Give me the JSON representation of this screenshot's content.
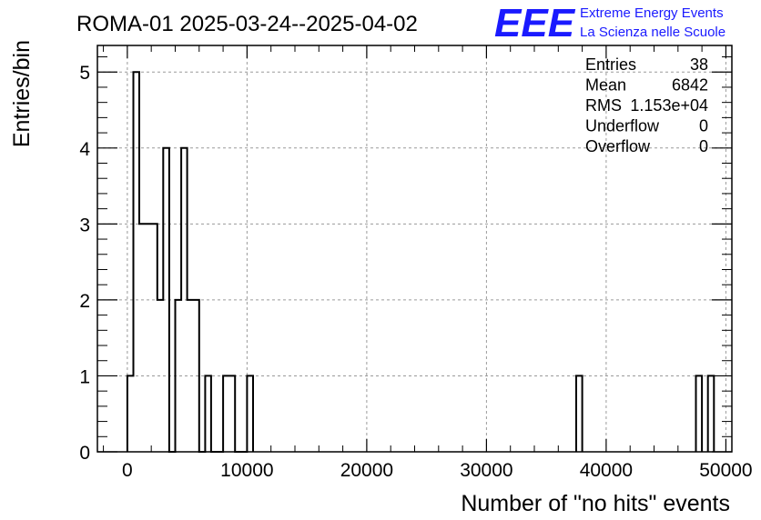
{
  "chart_data": {
    "type": "histogram",
    "title": "ROMA-01 2025-03-24--2025-04-02",
    "xlabel": "Number of \"no hits\" events",
    "ylabel": "Entries/bin",
    "xlim": [
      -2500,
      50500
    ],
    "ylim": [
      0,
      5.35
    ],
    "grid": true,
    "bin_width": 500,
    "x_ticks": [
      {
        "value": 0,
        "label": "0"
      },
      {
        "value": 10000,
        "label": "10000"
      },
      {
        "value": 20000,
        "label": "20000"
      },
      {
        "value": 30000,
        "label": "30000"
      },
      {
        "value": 40000,
        "label": "40000"
      },
      {
        "value": 50000,
        "label": "50000"
      }
    ],
    "y_ticks": [
      {
        "value": 0,
        "label": "0"
      },
      {
        "value": 1,
        "label": "1"
      },
      {
        "value": 2,
        "label": "2"
      },
      {
        "value": 3,
        "label": "3"
      },
      {
        "value": 4,
        "label": "4"
      },
      {
        "value": 5,
        "label": "5"
      }
    ],
    "bins": [
      {
        "x": 0,
        "count": 1
      },
      {
        "x": 500,
        "count": 5
      },
      {
        "x": 1000,
        "count": 3
      },
      {
        "x": 1500,
        "count": 3
      },
      {
        "x": 2000,
        "count": 3
      },
      {
        "x": 2500,
        "count": 2
      },
      {
        "x": 3000,
        "count": 4
      },
      {
        "x": 3500,
        "count": 0
      },
      {
        "x": 4000,
        "count": 2
      },
      {
        "x": 4500,
        "count": 4
      },
      {
        "x": 5000,
        "count": 2
      },
      {
        "x": 5500,
        "count": 2
      },
      {
        "x": 6000,
        "count": 0
      },
      {
        "x": 6500,
        "count": 1
      },
      {
        "x": 7000,
        "count": 0
      },
      {
        "x": 7500,
        "count": 0
      },
      {
        "x": 8000,
        "count": 1
      },
      {
        "x": 8500,
        "count": 1
      },
      {
        "x": 9000,
        "count": 0
      },
      {
        "x": 9500,
        "count": 0
      },
      {
        "x": 10000,
        "count": 1
      },
      {
        "x": 37500,
        "count": 1
      },
      {
        "x": 47500,
        "count": 1
      },
      {
        "x": 48500,
        "count": 1
      }
    ],
    "stats": [
      {
        "label": "Entries",
        "value": "38"
      },
      {
        "label": "Mean",
        "value": "6842"
      },
      {
        "label": "RMS",
        "value": "1.153e+04"
      },
      {
        "label": "Underflow",
        "value": "0"
      },
      {
        "label": "Overflow",
        "value": "0"
      }
    ]
  },
  "logo": {
    "text": "EEE",
    "line1": "Extreme Energy Events",
    "line2": "La Scienza nelle Scuole",
    "color": "#1a1aff"
  }
}
